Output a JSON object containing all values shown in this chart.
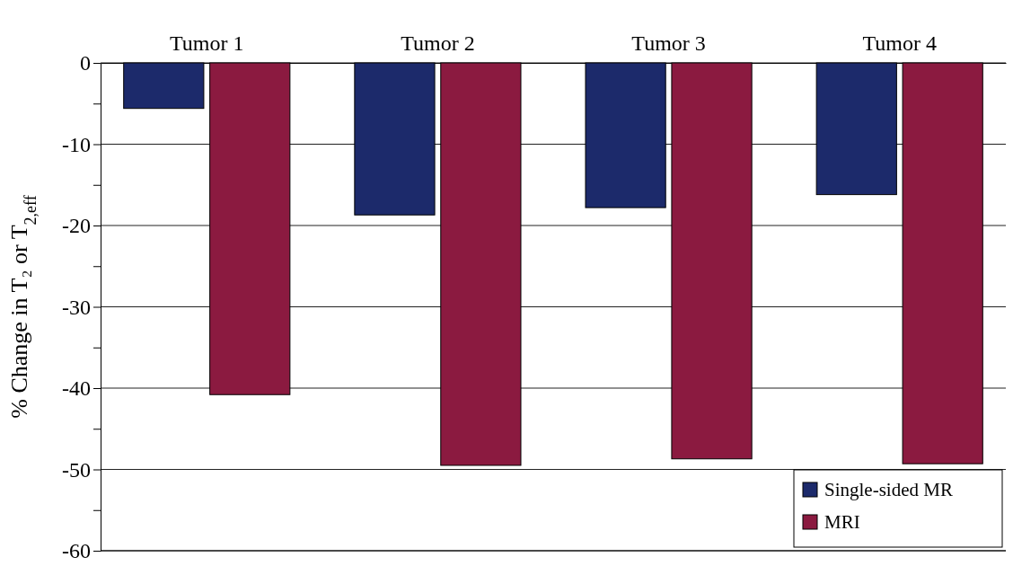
{
  "chart_data": {
    "type": "bar",
    "ylabel": "% Change in T₂ or T$_{2,eff}$",
    "categories": [
      "Tumor 1",
      "Tumor 2",
      "Tumor 3",
      "Tumor 4"
    ],
    "series": [
      {
        "name": "Single-sided MR",
        "color": "#1c2a6b",
        "values": [
          -5.6,
          -18.7,
          -17.8,
          -16.2
        ]
      },
      {
        "name": "MRI",
        "color": "#8b1a40",
        "values": [
          -40.8,
          -49.5,
          -48.7,
          -49.3
        ]
      }
    ],
    "ylim": [
      -60,
      0
    ],
    "yticks": [
      0,
      {
        "value": -5,
        "label": null
      },
      -10,
      {
        "value": -15,
        "label": null
      },
      -20,
      {
        "value": -25,
        "label": null
      },
      -30,
      {
        "value": -35,
        "label": null
      },
      -40,
      {
        "value": -45,
        "label": null
      },
      -50,
      {
        "value": -55,
        "label": null
      },
      -60
    ],
    "grid": "y",
    "legend": "bottom right"
  }
}
